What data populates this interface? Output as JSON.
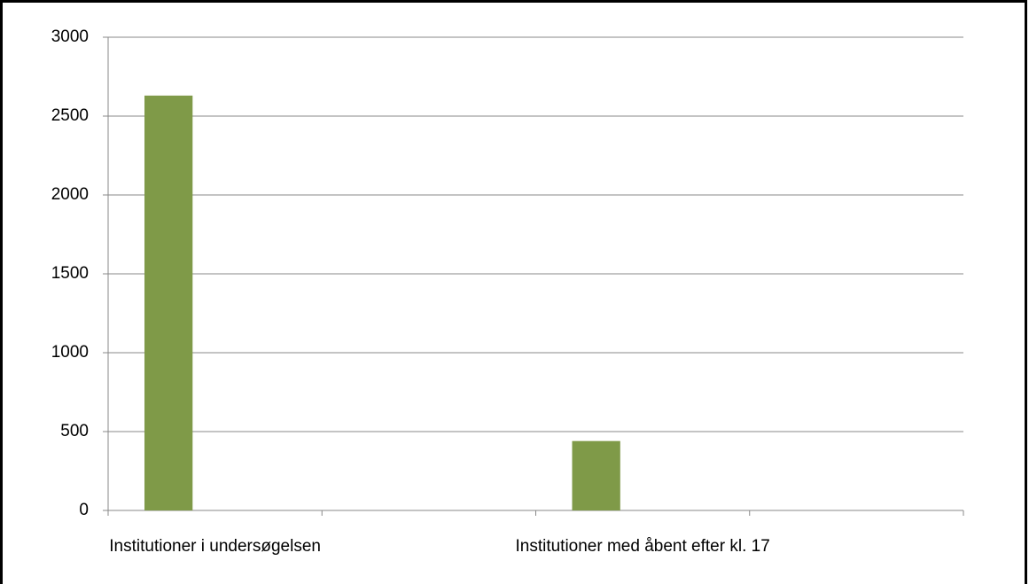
{
  "chart_data": {
    "type": "bar",
    "categories": [
      "Institutioner i undersøgelsen",
      null,
      "Institutioner med åbent efter kl. 17",
      null
    ],
    "values": [
      2630,
      null,
      440,
      null
    ],
    "color": "#7f9a48",
    "ylim": [
      0,
      3000
    ],
    "yticks": [
      0,
      500,
      1000,
      1500,
      2000,
      2500,
      3000
    ],
    "grid": true
  }
}
